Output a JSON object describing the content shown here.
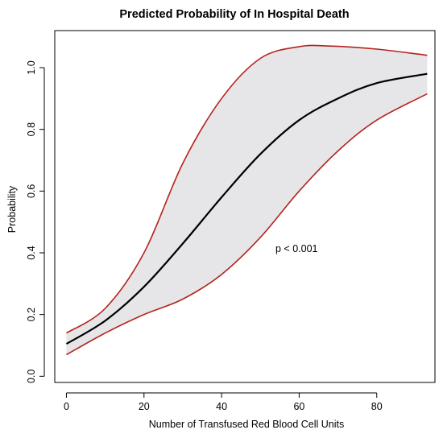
{
  "chart_data": {
    "type": "line",
    "title": "Predicted Probability of In Hospital Death",
    "xlabel": "Number of Transfused Red Blood Cell Units",
    "ylabel": "Probability",
    "xlim": [
      -3,
      95
    ],
    "ylim": [
      -0.02,
      1.12
    ],
    "x_ticks": [
      0,
      20,
      40,
      60,
      80
    ],
    "y_ticks": [
      0.0,
      0.2,
      0.4,
      0.6,
      0.8,
      1.0
    ],
    "x_tick_labels": [
      "0",
      "20",
      "40",
      "60",
      "80"
    ],
    "y_tick_labels": [
      "0.0",
      "0.2",
      "0.4",
      "0.6",
      "0.8",
      "1.0"
    ],
    "grid": false,
    "annotation": "p < 0.001",
    "colors": {
      "estimate": "#000000",
      "bounds": "#b5231d",
      "band_fill": "#e6e6e8",
      "axis": "#000000"
    },
    "series": [
      {
        "role": "estimate",
        "x": [
          0,
          10,
          20,
          30,
          40,
          50,
          60,
          70,
          80,
          93
        ],
        "y": [
          0.105,
          0.18,
          0.29,
          0.43,
          0.58,
          0.72,
          0.83,
          0.9,
          0.95,
          0.98
        ]
      },
      {
        "role": "upper",
        "x": [
          0,
          10,
          20,
          30,
          40,
          50,
          60,
          68,
          80,
          93
        ],
        "y": [
          0.14,
          0.22,
          0.4,
          0.69,
          0.9,
          1.03,
          1.068,
          1.07,
          1.06,
          1.04
        ]
      },
      {
        "role": "lower",
        "x": [
          0,
          10,
          20,
          30,
          40,
          50,
          60,
          70,
          80,
          93
        ],
        "y": [
          0.07,
          0.14,
          0.2,
          0.25,
          0.33,
          0.45,
          0.6,
          0.73,
          0.83,
          0.915
        ]
      }
    ]
  }
}
